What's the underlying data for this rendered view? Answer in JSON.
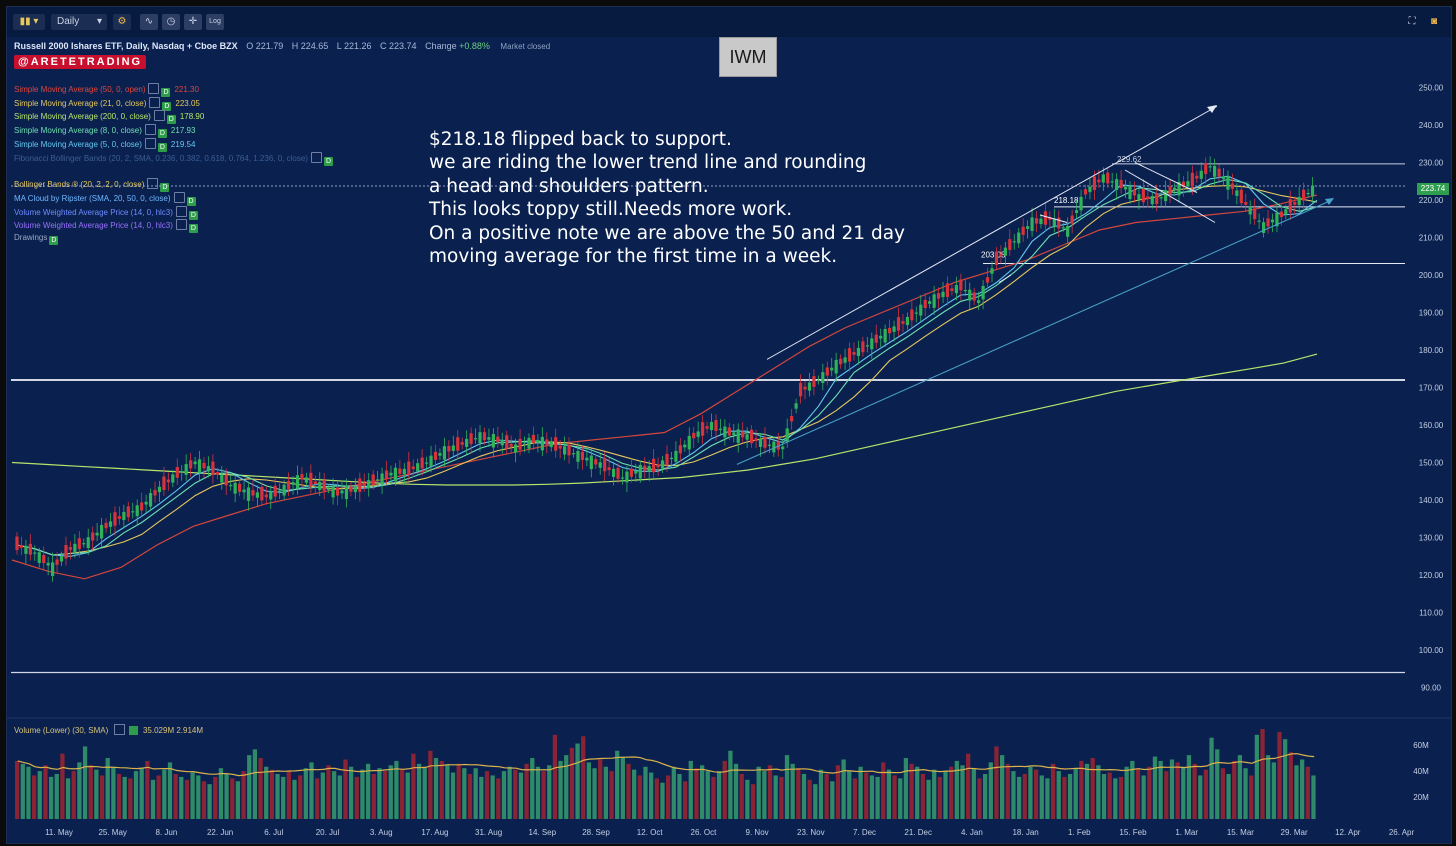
{
  "toolbar": {
    "interval": "Daily",
    "log_label": "Log"
  },
  "header": {
    "symbol_title": "Russell 2000 Ishares ETF, Daily, Nasdaq + Cboe BZX",
    "open": "O 221.79",
    "high": "H 224.65",
    "low": "L 221.26",
    "close": "C 223.74",
    "change_label": "Change",
    "change": "+0.88%",
    "market_status": "Market closed"
  },
  "brand": "@ARETETRADING",
  "ticker_box": "IWM",
  "indicators": [
    {
      "label": "Simple Moving Average (50, 0, open)",
      "value": "221.30",
      "color": "#e0453a"
    },
    {
      "label": "Simple Moving Average (21, 0, close)",
      "value": "223.05",
      "color": "#e8c85a"
    },
    {
      "label": "Simple Moving Average (200, 0, close)",
      "value": "178.90",
      "color": "#b9e46a"
    },
    {
      "label": "Simple Moving Average (8, 0, close)",
      "value": "217.93",
      "color": "#6fe0b0"
    },
    {
      "label": "Simple Moving Average (5, 0, close)",
      "value": "219.54",
      "color": "#64c8f0"
    },
    {
      "label": "Fibonacci Bollinger Bands (20, 2, SMA, 0.236, 0.382, 0.618, 0.764, 1.236, 0, close)",
      "value": "",
      "color": "#3c5d92"
    },
    {
      "label": "Bollinger Bands ® (20, 2, 2, 0, close)",
      "value": "",
      "color": "#e8c85a"
    },
    {
      "label": "MA Cloud by Ripster (SMA, 20, 50, 0, close)",
      "value": "",
      "color": "#6fb7ff"
    },
    {
      "label": "Volume Weighted Average Price (14, 0, hlc3)",
      "value": "",
      "color": "#6f8bff"
    },
    {
      "label": "Volume Weighted Average Price (14, 0, hlc3)",
      "value": "",
      "color": "#9a6fff"
    },
    {
      "label": "Drawings",
      "value": "",
      "color": "#9aa7c2"
    }
  ],
  "annotation_lines": [
    "$218.18 flipped back to support.",
    "we are riding the lower trend line and rounding",
    "a head and shoulders pattern.",
    "This looks toppy still.Needs more work.",
    "On a positive note we are above the 50 and 21 day",
    "moving average for the first time in a week."
  ],
  "price_badge": "223.74",
  "level_labels": {
    "top": "229.62",
    "mid": "218.18",
    "low": "203.08"
  },
  "volume_header": {
    "label": "Volume (Lower) (30, SMA)",
    "value": "35.029M 2.914M"
  },
  "colors": {
    "background": "#0a2150",
    "up": "#2fb35a",
    "down": "#d8323a",
    "vol_up": "#2e8a68",
    "vol_down": "#8a2333"
  },
  "chart_data": {
    "type": "candlestick",
    "title": "Russell 2000 Ishares ETF, Daily, Nasdaq + Cboe BZX",
    "ylim": [
      85,
      260
    ],
    "y_ticks": [
      "250.00",
      "240.00",
      "230.00",
      "220.00",
      "210.00",
      "200.00",
      "190.00",
      "180.00",
      "170.00",
      "160.00",
      "150.00",
      "140.00",
      "130.00",
      "120.00",
      "110.00",
      "100.00",
      "90.00"
    ],
    "x_ticks": [
      "11. May",
      "25. May",
      "8. Jun",
      "22. Jun",
      "6. Jul",
      "20. Jul",
      "3. Aug",
      "17. Aug",
      "31. Aug",
      "14. Sep",
      "28. Sep",
      "12. Oct",
      "26. Oct",
      "9. Nov",
      "23. Nov",
      "7. Dec",
      "21. Dec",
      "4. Jan",
      "18. Jan",
      "1. Feb",
      "15. Feb",
      "1. Mar",
      "15. Mar",
      "29. Mar",
      "12. Apr",
      "26. Apr"
    ],
    "close_series": [
      128,
      126,
      122,
      127,
      129,
      133,
      136,
      138,
      143,
      147,
      150,
      148,
      144,
      142,
      141,
      143,
      146,
      144,
      142,
      143,
      145,
      147,
      148,
      150,
      153,
      155,
      157,
      156,
      154,
      156,
      155,
      153,
      151,
      149,
      146,
      148,
      149,
      152,
      157,
      160,
      158,
      157,
      155,
      154,
      169,
      172,
      176,
      179,
      182,
      185,
      188,
      192,
      195,
      197,
      193,
      204,
      209,
      214,
      215,
      212,
      222,
      226,
      224,
      221,
      220,
      223,
      225,
      229,
      225,
      219,
      213,
      216,
      220,
      223.74
    ],
    "sma200": [
      150,
      149.5,
      149,
      148.5,
      148,
      147.5,
      147,
      146.5,
      146,
      145.5,
      145,
      144.5,
      144.2,
      144,
      144,
      144,
      144.2,
      144.5,
      145,
      145.5,
      146,
      147,
      148,
      149.5,
      151,
      153,
      155,
      157,
      159,
      161,
      163,
      165,
      167,
      169,
      170.5,
      172,
      173.5,
      175,
      176.5,
      178.9
    ],
    "sma50": [
      124,
      121,
      119,
      122,
      128,
      133,
      136,
      139,
      141,
      143,
      145,
      147,
      149,
      151,
      153,
      155,
      156,
      157,
      158,
      163,
      169,
      175,
      181,
      186,
      190,
      194,
      198,
      201,
      204,
      208,
      212,
      214,
      215,
      216,
      217,
      219,
      221.3
    ],
    "levels": [
      172,
      94,
      229.62,
      218.18,
      203.08
    ],
    "volume_scale_m": [
      "60M",
      "40M",
      "20M"
    ],
    "volume_m": [
      40,
      38,
      36,
      30,
      33,
      37,
      29,
      31,
      45,
      28,
      33,
      39,
      50,
      37,
      34,
      30,
      42,
      36,
      31,
      29,
      28,
      33,
      35,
      40,
      27,
      30,
      34,
      39,
      31,
      29,
      27,
      32,
      30,
      26,
      24,
      29,
      35,
      31,
      28,
      26,
      33,
      44,
      48,
      42,
      36,
      34,
      31,
      29,
      33,
      27,
      30,
      35,
      39,
      28,
      32,
      37,
      33,
      30,
      41,
      36,
      29,
      34,
      38,
      31,
      35,
      33,
      37,
      40,
      34,
      32,
      45,
      38,
      36,
      47,
      42,
      40,
      37,
      32,
      38,
      35,
      31,
      35,
      29,
      33,
      30,
      28,
      33,
      36,
      34,
      32,
      38,
      42,
      36,
      33,
      37,
      58,
      40,
      44,
      49,
      52,
      57,
      39,
      35,
      41,
      36,
      33,
      47,
      43,
      38,
      34,
      30,
      36,
      32,
      28,
      25,
      30,
      36,
      31,
      26,
      40,
      35,
      37,
      33,
      29,
      33,
      40,
      47,
      38,
      31,
      27,
      24,
      36,
      33,
      37,
      30,
      29,
      44,
      38,
      35,
      31,
      27,
      24,
      34,
      31,
      26,
      37,
      41,
      33,
      28,
      36,
      32,
      30,
      29,
      39,
      34,
      30,
      28,
      42,
      38,
      36,
      31,
      27,
      34,
      29,
      33,
      36,
      40,
      37,
      45,
      35,
      28,
      31,
      39,
      50,
      44,
      38,
      33,
      29,
      31,
      36,
      34,
      30,
      28,
      38,
      33,
      29,
      31,
      35,
      40,
      38,
      42,
      37,
      31,
      32,
      28,
      29,
      36,
      40,
      35,
      30,
      36,
      43,
      40,
      33,
      41,
      39,
      36,
      44,
      38,
      30,
      34,
      56,
      48,
      35,
      31,
      40,
      44,
      35,
      30,
      58,
      62,
      44,
      39,
      60,
      55,
      46,
      37,
      41,
      36,
      30
    ]
  }
}
